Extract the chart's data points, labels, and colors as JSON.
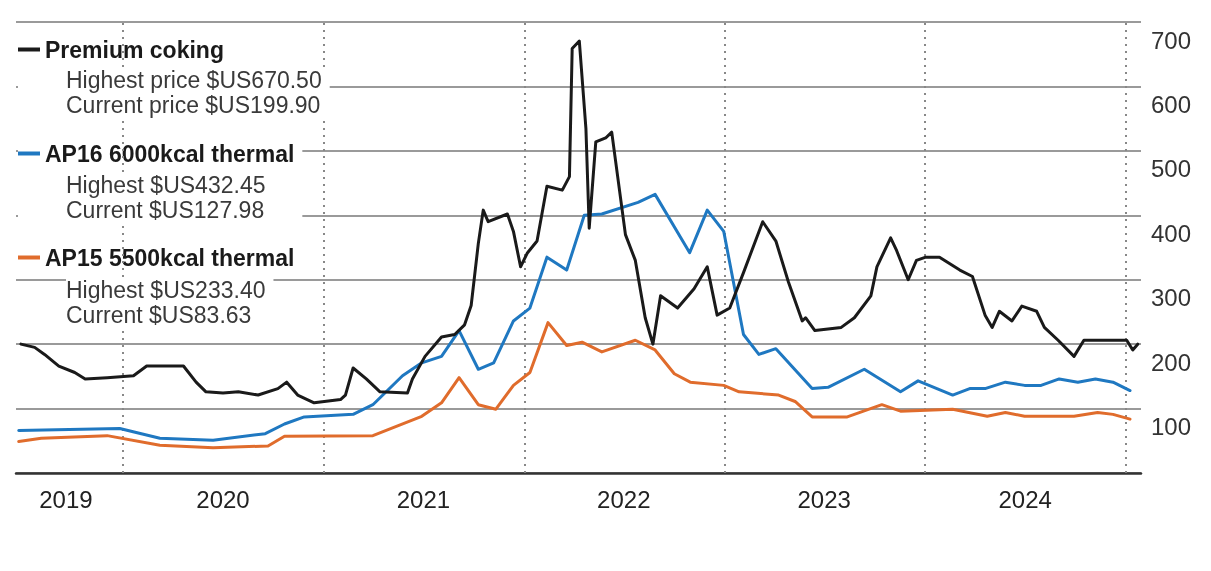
{
  "chart_data": {
    "type": "line",
    "xlim": [
      "2019-06-20",
      "2025-01-28"
    ],
    "xticks": [
      {
        "value": "2020-01-01",
        "label": null
      },
      {
        "value": "2021-01-01",
        "label": null
      },
      {
        "value": "2022-01-01",
        "label": null
      },
      {
        "value": "2023-01-01",
        "label": null
      },
      {
        "value": "2024-01-01",
        "label": null
      },
      {
        "value": "2025-01-01",
        "label": null
      },
      {
        "value": "2019-09-19",
        "label": "2019"
      },
      {
        "value": "2020-07-01",
        "label": "2020"
      },
      {
        "value": "2021-07-01",
        "label": "2021"
      },
      {
        "value": "2022-07-01",
        "label": "2022"
      },
      {
        "value": "2023-07-01",
        "label": "2023"
      },
      {
        "value": "2024-07-01",
        "label": "2024"
      }
    ],
    "ylim": [
      0,
      700
    ],
    "yticks": [
      100,
      200,
      300,
      400,
      500,
      600,
      700
    ],
    "grid": true,
    "legend": "top left",
    "annotations": [
      "Highest price $US670.50",
      "Current price $US199.90",
      "Highest $US432.45",
      "Current $US127.98",
      "Highest $US233.40",
      "Current $US83.63"
    ],
    "series": [
      {
        "name": "Premium coking",
        "color": "#1a1a1a",
        "x": [
          "2019-06-29",
          "2019-07-24",
          "2019-08-11",
          "2019-09-06",
          "2019-10-05",
          "2019-10-24",
          "2019-12-03",
          "2020-01-20",
          "2020-02-13",
          "2020-04-02",
          "2020-04-20",
          "2020-05-13",
          "2020-05-31",
          "2020-07-01",
          "2020-07-29",
          "2020-09-03",
          "2020-10-09",
          "2020-10-25",
          "2020-11-14",
          "2020-12-14",
          "2021-01-31",
          "2021-02-09",
          "2021-02-23",
          "2021-03-19",
          "2021-04-13",
          "2021-06-02",
          "2021-06-11",
          "2021-07-04",
          "2021-08-03",
          "2021-08-27",
          "2021-09-14",
          "2021-09-26",
          "2021-10-09",
          "2021-10-18",
          "2021-10-27",
          "2021-12-01",
          "2021-12-12",
          "2021-12-25",
          "2022-01-06",
          "2022-01-24",
          "2022-02-11",
          "2022-03-11",
          "2022-03-24",
          "2022-03-29",
          "2022-04-11",
          "2022-04-23",
          "2022-04-29",
          "2022-05-11",
          "2022-05-29",
          "2022-06-09",
          "2022-07-04",
          "2022-07-22",
          "2022-08-09",
          "2022-08-23",
          "2022-09-06",
          "2022-10-07",
          "2022-11-06",
          "2022-11-30",
          "2022-12-18",
          "2023-01-10",
          "2023-02-04",
          "2023-03-11",
          "2023-04-04",
          "2023-04-27",
          "2023-05-22",
          "2023-05-28",
          "2023-06-14",
          "2023-08-01",
          "2023-08-25",
          "2023-09-24",
          "2023-10-05",
          "2023-10-30",
          "2023-11-10",
          "2023-12-01",
          "2023-12-16",
          "2024-01-02",
          "2024-01-27",
          "2024-03-04",
          "2024-03-27",
          "2024-04-19",
          "2024-05-02",
          "2024-05-15",
          "2024-06-07",
          "2024-06-25",
          "2024-07-22",
          "2024-08-05",
          "2024-08-30",
          "2024-09-28",
          "2024-10-16",
          "2024-11-10",
          "2025-01-02",
          "2025-01-13",
          "2025-01-22"
        ],
        "values": [
          200,
          195,
          184,
          166,
          156,
          146,
          148,
          151,
          166,
          166,
          166,
          141,
          126,
          124,
          126,
          121,
          131,
          141,
          121,
          109,
          114,
          121,
          163,
          146,
          126,
          124,
          146,
          181,
          211,
          215,
          230,
          260,
          356,
          408,
          390,
          402,
          375,
          320,
          341,
          360,
          445,
          439,
          460,
          659,
          670.5,
          535,
          380,
          514,
          520,
          529,
          370,
          330,
          241,
          200,
          275,
          256,
          286,
          320,
          245,
          256,
          311,
          390,
          360,
          296,
          236,
          241,
          221,
          226,
          241,
          275,
          320,
          365,
          345,
          300,
          330,
          335,
          335,
          315,
          305,
          245,
          226,
          251,
          236,
          259,
          251,
          226,
          206,
          181,
          206,
          206,
          206,
          191,
          199.9
        ]
      },
      {
        "name": "AP16 6000kcal thermal",
        "color": "#1f78c1",
        "x": [
          "2019-06-25",
          "2019-12-26",
          "2020-03-08",
          "2020-06-13",
          "2020-09-16",
          "2020-10-21",
          "2020-11-26",
          "2021-02-23",
          "2021-03-31",
          "2021-05-24",
          "2021-06-28",
          "2021-08-03",
          "2021-09-04",
          "2021-10-09",
          "2021-11-06",
          "2021-12-12",
          "2022-01-11",
          "2022-02-11",
          "2022-03-19",
          "2022-04-20",
          "2022-05-22",
          "2022-07-27",
          "2022-08-27",
          "2022-10-29",
          "2022-11-30",
          "2022-12-30",
          "2023-02-04",
          "2023-03-04",
          "2023-04-04",
          "2023-06-09",
          "2023-07-08",
          "2023-09-12",
          "2023-11-17",
          "2023-12-19",
          "2024-02-20",
          "2024-03-22",
          "2024-04-19",
          "2024-05-26",
          "2024-06-30",
          "2024-07-30",
          "2024-09-01",
          "2024-10-05",
          "2024-11-06",
          "2024-12-08",
          "2025-01-08"
        ],
        "values": [
          66,
          69,
          54,
          51,
          61,
          76,
          87,
          91,
          106,
          151,
          171,
          181,
          221,
          161,
          171,
          236,
          256,
          335,
          315,
          400,
          402,
          420,
          432.45,
          342,
          408,
          375,
          215,
          184,
          193,
          131,
          133,
          161,
          126,
          143,
          121,
          131,
          131,
          141,
          136,
          136,
          146,
          141,
          146,
          141,
          127.98
        ]
      },
      {
        "name": "AP15 5500kcal thermal",
        "color": "#e06c2c",
        "x": [
          "2019-06-25",
          "2019-08-05",
          "2019-12-03",
          "2020-03-08",
          "2020-06-13",
          "2020-09-21",
          "2020-10-21",
          "2021-03-31",
          "2021-06-28",
          "2021-08-03",
          "2021-09-04",
          "2021-10-09",
          "2021-11-10",
          "2021-12-12",
          "2022-01-11",
          "2022-02-13",
          "2022-03-19",
          "2022-04-16",
          "2022-05-22",
          "2022-07-22",
          "2022-08-27",
          "2022-10-01",
          "2022-10-30",
          "2022-12-30",
          "2023-01-27",
          "2023-04-09",
          "2023-05-09",
          "2023-06-09",
          "2023-08-12",
          "2023-10-14",
          "2023-11-17",
          "2024-02-20",
          "2024-04-23",
          "2024-05-26",
          "2024-06-30",
          "2024-09-28",
          "2024-11-10",
          "2024-12-08",
          "2025-01-08"
        ],
        "values": [
          49,
          54,
          58,
          43,
          39,
          42,
          57,
          58,
          88,
          109,
          148,
          106,
          99,
          136,
          156,
          233.4,
          198,
          203,
          188,
          206,
          191,
          154,
          141,
          136,
          126,
          121,
          111,
          87,
          87,
          106,
          96,
          99,
          88,
          94,
          88,
          88,
          94,
          91,
          83.63
        ]
      }
    ]
  }
}
